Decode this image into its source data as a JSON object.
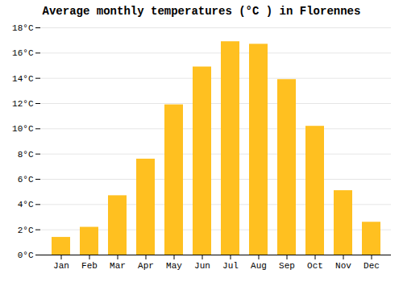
{
  "chart_data": {
    "type": "bar",
    "title": "Average monthly temperatures (°C ) in Florennes",
    "categories": [
      "Jan",
      "Feb",
      "Mar",
      "Apr",
      "May",
      "Jun",
      "Jul",
      "Aug",
      "Sep",
      "Oct",
      "Nov",
      "Dec"
    ],
    "values": [
      1.4,
      2.2,
      4.7,
      7.6,
      11.9,
      14.9,
      16.9,
      16.7,
      13.9,
      10.2,
      5.1,
      2.6
    ],
    "color": "#FFC020",
    "ylim": [
      0,
      18
    ],
    "yticks": [
      {
        "value": 0,
        "label": "0°C"
      },
      {
        "value": 2,
        "label": "2°C"
      },
      {
        "value": 4,
        "label": "4°C"
      },
      {
        "value": 6,
        "label": "6°C"
      },
      {
        "value": 8,
        "label": "8°C"
      },
      {
        "value": 10,
        "label": "10°C"
      },
      {
        "value": 12,
        "label": "12°C"
      },
      {
        "value": 14,
        "label": "14°C"
      },
      {
        "value": 16,
        "label": "16°C"
      },
      {
        "value": 18,
        "label": "18°C"
      }
    ],
    "grid": true
  }
}
